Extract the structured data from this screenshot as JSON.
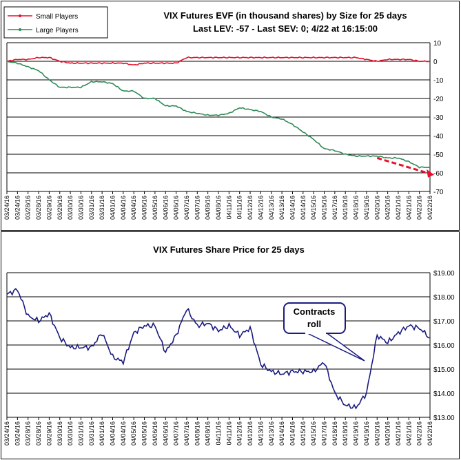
{
  "top_chart": {
    "title_line1": "VIX Futures EVF (in thousand shares) by Size for 25 days",
    "title_line2": "Last LEV: -57 - Last SEV: 0; 4/22 at 16:15:00",
    "legend": [
      "Small Players",
      "Large Players"
    ]
  },
  "bottom_chart": {
    "title": "VIX Futures Share Price for 25 days",
    "callout": [
      "Contracts",
      "roll"
    ]
  },
  "chart_data": [
    {
      "type": "line",
      "title": "VIX Futures EVF (in thousand shares) by Size for 25 days",
      "subtitle": "Last LEV: -57 - Last SEV: 0; 4/22 at 16:15:00",
      "ylim": [
        -70,
        10
      ],
      "yticks": [
        10,
        0,
        -10,
        -20,
        -30,
        -40,
        -50,
        -60,
        -70
      ],
      "categories": [
        "03/24/16",
        "03/24/16",
        "03/28/16",
        "03/28/16",
        "03/29/16",
        "03/29/16",
        "03/30/16",
        "03/30/16",
        "03/31/16",
        "03/31/16",
        "04/01/16",
        "04/04/16",
        "04/04/16",
        "04/05/16",
        "04/05/16",
        "04/06/16",
        "04/06/16",
        "04/07/16",
        "04/07/16",
        "04/08/16",
        "04/08/16",
        "04/11/16",
        "04/11/16",
        "04/12/16",
        "04/12/16",
        "04/13/16",
        "04/13/16",
        "04/14/16",
        "04/14/16",
        "04/15/16",
        "04/15/16",
        "04/17/16",
        "04/18/16",
        "04/18/16",
        "04/19/16",
        "04/20/16",
        "04/20/16",
        "04/21/16",
        "04/21/16",
        "04/22/16",
        "04/22/16"
      ],
      "legend": "top-left",
      "grid": true,
      "series": [
        {
          "name": "Small Players",
          "color": "#e8102a",
          "values": [
            0,
            1,
            1,
            2,
            2,
            0,
            -1,
            -1,
            -1,
            -1,
            -1,
            -1,
            -2,
            -1,
            -1,
            -1,
            -1,
            2,
            2,
            2,
            2,
            2,
            2,
            2,
            2,
            2,
            2,
            2,
            2,
            2,
            2,
            2,
            2,
            2,
            1,
            0,
            1,
            1,
            1,
            0,
            0
          ]
        },
        {
          "name": "Large Players",
          "color": "#2e8b57",
          "values": [
            0,
            -1,
            -3,
            -5,
            -10,
            -14,
            -14,
            -14,
            -11,
            -11,
            -12,
            -16,
            -16,
            -20,
            -20,
            -24,
            -24,
            -27,
            -28,
            -29,
            -29,
            -28,
            -25,
            -26,
            -27,
            -30,
            -31,
            -34,
            -38,
            -42,
            -47,
            -48,
            -50,
            -51,
            -51,
            -51,
            -52,
            -52,
            -54,
            -57,
            -57
          ]
        }
      ],
      "trend_arrow": {
        "color": "#e8102a",
        "from": {
          "x": "04/20/16",
          "y": -52
        },
        "to": {
          "x": "04/22/16",
          "y": -61
        }
      }
    },
    {
      "type": "line",
      "title": "VIX Futures Share Price for 25 days",
      "ylim": [
        13.0,
        19.0
      ],
      "yticks": [
        "$19.00",
        "$18.00",
        "$17.00",
        "$16.00",
        "$15.00",
        "$14.00",
        "$13.00"
      ],
      "categories": [
        "03/24/16",
        "03/24/16",
        "03/28/16",
        "03/28/16",
        "03/29/16",
        "03/30/16",
        "03/30/16",
        "03/31/16",
        "03/31/16",
        "04/01/16",
        "04/04/16",
        "04/04/16",
        "04/05/16",
        "04/05/16",
        "04/06/16",
        "04/06/16",
        "04/07/16",
        "04/07/16",
        "04/08/16",
        "04/08/16",
        "04/11/16",
        "04/11/16",
        "04/12/16",
        "04/12/16",
        "04/13/16",
        "04/13/16",
        "04/14/16",
        "04/14/16",
        "04/15/16",
        "04/15/16",
        "04/17/16",
        "04/18/16",
        "04/18/16",
        "04/19/16",
        "04/19/16",
        "04/20/16",
        "04/20/16",
        "04/21/16",
        "04/21/16",
        "04/22/16",
        "04/22/16"
      ],
      "grid": true,
      "annotation": "Contracts roll",
      "series": [
        {
          "color": "#1a1a80",
          "values": [
            18.1,
            18.3,
            17.2,
            17.0,
            17.3,
            16.3,
            15.9,
            15.9,
            15.9,
            16.5,
            15.5,
            15.3,
            16.5,
            16.8,
            16.8,
            15.7,
            16.4,
            17.5,
            16.8,
            16.9,
            16.6,
            16.8,
            16.4,
            16.7,
            15.2,
            14.9,
            14.8,
            14.9,
            14.9,
            14.9,
            15.3,
            14.0,
            13.5,
            13.4,
            14.0,
            16.4,
            16.1,
            16.5,
            16.8,
            16.7,
            16.3
          ]
        }
      ]
    }
  ]
}
